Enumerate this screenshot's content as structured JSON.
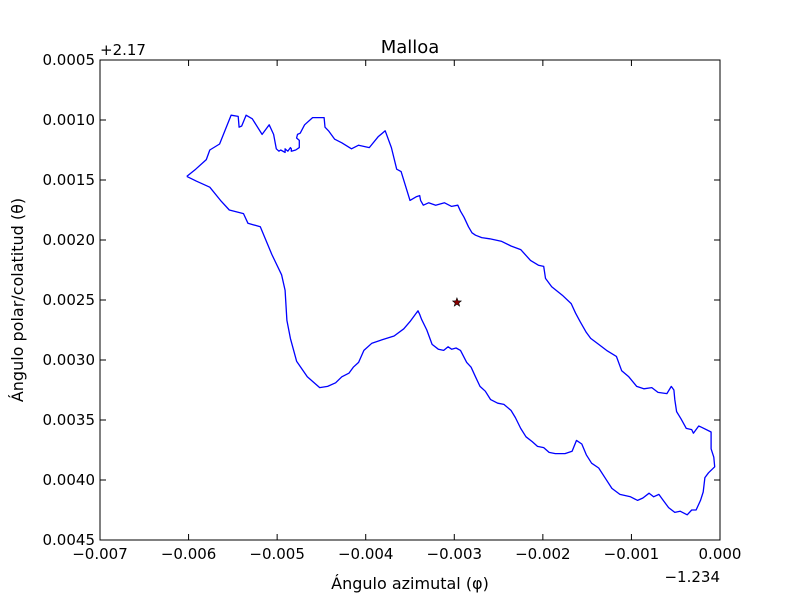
{
  "chart_data": {
    "type": "line",
    "title": "Malloa",
    "xlabel": "Ángulo azimutal (φ)",
    "ylabel": "Ángulo polar/colatitud (θ)",
    "x_offset_label": "−1.234",
    "y_offset_label": "+2.17",
    "xlim": [
      -0.007,
      0.0
    ],
    "ylim": [
      0.0045,
      0.0005
    ],
    "y_inverted": true,
    "grid": false,
    "x_ticks": [
      -0.007,
      -0.006,
      -0.005,
      -0.004,
      -0.003,
      -0.002,
      -0.001,
      0.0
    ],
    "x_tick_labels": [
      "−0.007",
      "−0.006",
      "−0.005",
      "−0.004",
      "−0.003",
      "−0.002",
      "−0.001",
      "0.000"
    ],
    "y_ticks": [
      0.0005,
      0.001,
      0.0015,
      0.002,
      0.0025,
      0.003,
      0.0035,
      0.004,
      0.0045
    ],
    "y_tick_labels": [
      "0.0005",
      "0.0010",
      "0.0015",
      "0.0020",
      "0.0025",
      "0.0030",
      "0.0035",
      "0.0040",
      "0.0045"
    ],
    "colors": {
      "boundary": "#0000ff",
      "marker_fill": "#8b0000",
      "axes": "#000000"
    },
    "series": [
      {
        "type": "line",
        "x": [
          -0.00602,
          -0.00592,
          -0.0058,
          -0.00576,
          -0.00565,
          -0.00552,
          -0.00544,
          -0.00543,
          -0.0054,
          -0.00535,
          -0.00528,
          -0.00517,
          -0.00509,
          -0.00504,
          -0.00501,
          -0.00498,
          -0.00496,
          -0.00491,
          -0.00491,
          -0.00488,
          -0.00485,
          -0.00484,
          -0.00484,
          -0.00479,
          -0.00475,
          -0.00475,
          -0.00478,
          -0.00477,
          -0.00474,
          -0.00469,
          -0.0046,
          -0.00447,
          -0.00446,
          -0.00442,
          -0.00435,
          -0.00427,
          -0.00416,
          -0.00408,
          -0.00396,
          -0.00386,
          -0.00378,
          -0.00371,
          -0.00365,
          -0.0036,
          -0.0035,
          -0.00343,
          -0.00339,
          -0.00338,
          -0.00335,
          -0.00329,
          -0.00321,
          -0.00311,
          -0.00303,
          -0.00296,
          -0.00293,
          -0.00289,
          -0.00284,
          -0.0028,
          -0.00276,
          -0.00269,
          -0.0026,
          -0.00247,
          -0.00236,
          -0.00225,
          -0.00214,
          -0.00205,
          -0.00199,
          -0.00197,
          -0.0019,
          -0.00178,
          -0.00168,
          -0.00163,
          -0.00158,
          -0.00151,
          -0.00146,
          -0.00137,
          -0.00128,
          -0.00117,
          -0.00111,
          -0.00103,
          -0.00094,
          -0.00086,
          -0.00077,
          -0.0007,
          -0.0006,
          -0.00055,
          -0.00052,
          -0.00051,
          -0.00049,
          -0.00044,
          -0.00038,
          -0.00032,
          -0.0003,
          -0.00024,
          -0.00021,
          -0.0001,
          -0.0001,
          -7e-05,
          -6e-05,
          -0.00013,
          -0.00017,
          -0.00019,
          -0.00022,
          -0.00027,
          -0.00032,
          -0.00037,
          -0.00045,
          -0.00051,
          -0.00058,
          -0.00065,
          -0.00069,
          -0.00075,
          -0.0008,
          -0.00087,
          -0.00093,
          -0.00101,
          -0.00113,
          -0.00122,
          -0.00129,
          -0.00137,
          -0.00145,
          -0.00151,
          -0.00156,
          -0.00162,
          -0.00167,
          -0.00175,
          -0.00186,
          -0.00193,
          -0.00199,
          -0.00206,
          -0.00212,
          -0.00219,
          -0.00225,
          -0.00231,
          -0.00236,
          -0.00244,
          -0.00251,
          -0.00259,
          -0.00265,
          -0.00271,
          -0.00276,
          -0.00281,
          -0.00286,
          -0.00293,
          -0.00298,
          -0.00303,
          -0.00307,
          -0.00312,
          -0.00318,
          -0.00325,
          -0.00331,
          -0.00337,
          -0.00339,
          -0.00341,
          -0.0035,
          -0.00357,
          -0.00368,
          -0.00381,
          -0.00393,
          -0.00402,
          -0.00408,
          -0.00414,
          -0.00419,
          -0.00427,
          -0.00434,
          -0.00443,
          -0.00452,
          -0.00466,
          -0.00478,
          -0.00485,
          -0.00489,
          -0.00491,
          -0.00495,
          -0.00506,
          -0.00519,
          -0.00533,
          -0.00538,
          -0.00554,
          -0.00564,
          -0.00576,
          -0.00591,
          -0.00602
        ],
        "y": [
          0.00147,
          0.00141,
          0.00133,
          0.00125,
          0.0012,
          0.00096,
          0.00097,
          0.00106,
          0.00105,
          0.00096,
          0.00099,
          0.00112,
          0.00104,
          0.00112,
          0.00124,
          0.00126,
          0.00125,
          0.00127,
          0.00124,
          0.00126,
          0.00123,
          0.00124,
          0.00126,
          0.00125,
          0.00123,
          0.00117,
          0.00115,
          0.00112,
          0.00111,
          0.00104,
          0.00098,
          0.00098,
          0.00106,
          0.00109,
          0.00116,
          0.00119,
          0.00124,
          0.00121,
          0.00123,
          0.00114,
          0.00109,
          0.00123,
          0.00141,
          0.00143,
          0.00167,
          0.00164,
          0.00163,
          0.00167,
          0.00171,
          0.00169,
          0.00171,
          0.00169,
          0.00172,
          0.00171,
          0.00176,
          0.00181,
          0.00189,
          0.00194,
          0.00196,
          0.00198,
          0.00199,
          0.00201,
          0.00205,
          0.00208,
          0.00217,
          0.00221,
          0.00222,
          0.00232,
          0.00239,
          0.00246,
          0.00253,
          0.00261,
          0.00268,
          0.00277,
          0.00282,
          0.00287,
          0.00292,
          0.00297,
          0.00309,
          0.00314,
          0.00322,
          0.00324,
          0.00323,
          0.00327,
          0.00328,
          0.00322,
          0.00325,
          0.00333,
          0.00343,
          0.00349,
          0.00357,
          0.00358,
          0.00361,
          0.00355,
          0.00356,
          0.0036,
          0.00374,
          0.00381,
          0.00389,
          0.00394,
          0.00398,
          0.0041,
          0.00417,
          0.00425,
          0.00425,
          0.00429,
          0.00426,
          0.00427,
          0.00423,
          0.00416,
          0.00412,
          0.00414,
          0.00411,
          0.00415,
          0.00417,
          0.00414,
          0.00412,
          0.00407,
          0.00399,
          0.0039,
          0.00386,
          0.00379,
          0.0037,
          0.00367,
          0.00376,
          0.00378,
          0.00378,
          0.00377,
          0.00373,
          0.00372,
          0.00368,
          0.00364,
          0.00357,
          0.00348,
          0.00342,
          0.00337,
          0.00336,
          0.00333,
          0.00326,
          0.00322,
          0.00314,
          0.00306,
          0.00302,
          0.00292,
          0.0029,
          0.00291,
          0.00289,
          0.00292,
          0.00291,
          0.00287,
          0.00275,
          0.00266,
          0.00262,
          0.00259,
          0.00268,
          0.00274,
          0.0028,
          0.00283,
          0.00286,
          0.00292,
          0.00302,
          0.00306,
          0.00311,
          0.00314,
          0.00319,
          0.00322,
          0.00323,
          0.00314,
          0.00301,
          0.00282,
          0.00267,
          0.00242,
          0.00229,
          0.00212,
          0.00189,
          0.00186,
          0.00178,
          0.00175,
          0.00167,
          0.00156,
          0.00151,
          0.00147
        ]
      },
      {
        "type": "scatter",
        "marker": "star",
        "x": [
          -0.00297
        ],
        "y": [
          0.00252
        ]
      }
    ]
  }
}
